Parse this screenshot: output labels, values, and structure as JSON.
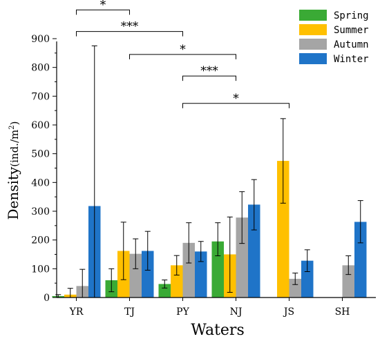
{
  "chart_data": {
    "type": "bar",
    "title": "",
    "xlabel": "Waters",
    "ylabel_main": "Density",
    "ylabel_unit": "(ind./m",
    "ylabel_sup": "2",
    "ylabel_close": ")",
    "ylim": [
      0,
      900
    ],
    "yticks": [
      0,
      100,
      200,
      300,
      400,
      500,
      600,
      700,
      800,
      900
    ],
    "ytick_labels": [
      "0",
      "100",
      "200",
      "300",
      "400",
      "500",
      "600",
      "700",
      "800",
      "900"
    ],
    "legend_position": "top-right",
    "categories": [
      "YR",
      "TJ",
      "PY",
      "NJ",
      "JS",
      "SH"
    ],
    "series": [
      {
        "name": "Spring",
        "color": "#3aaa35",
        "values": [
          5,
          60,
          47,
          195,
          0,
          0
        ],
        "err_low": [
          0,
          20,
          33,
          145,
          0,
          0
        ],
        "err_high": [
          10,
          100,
          61,
          260,
          0,
          0
        ]
      },
      {
        "name": "Summer",
        "color": "#ffc000",
        "values": [
          10,
          162,
          112,
          150,
          475,
          0
        ],
        "err_low": [
          0,
          62,
          78,
          18,
          328,
          0
        ],
        "err_high": [
          32,
          262,
          146,
          280,
          622,
          0
        ]
      },
      {
        "name": "Autumn",
        "color": "#a5a5a5",
        "values": [
          40,
          152,
          190,
          278,
          65,
          112
        ],
        "err_low": [
          0,
          100,
          120,
          188,
          45,
          80
        ],
        "err_high": [
          98,
          204,
          260,
          368,
          85,
          145
        ]
      },
      {
        "name": "Winter",
        "color": "#1f74c8",
        "values": [
          318,
          162,
          160,
          323,
          128,
          263
        ],
        "err_low": [
          0,
          95,
          125,
          235,
          90,
          190
        ],
        "err_high": [
          875,
          230,
          195,
          410,
          166,
          337
        ]
      }
    ],
    "significance": [
      {
        "from": "YR",
        "to": "TJ",
        "label": "*",
        "level": 1000
      },
      {
        "from": "YR",
        "to": "PY",
        "label": "***",
        "level": 925
      },
      {
        "from": "TJ",
        "to": "NJ",
        "label": "*",
        "level": 845
      },
      {
        "from": "PY",
        "to": "NJ",
        "label": "***",
        "level": 770
      },
      {
        "from": "PY",
        "to": "JS",
        "label": "*",
        "level": 675
      }
    ]
  }
}
